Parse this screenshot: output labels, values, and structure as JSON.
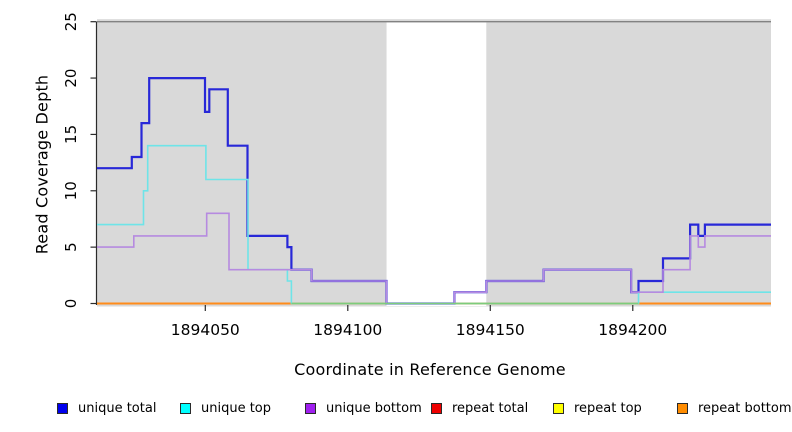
{
  "chart_data": {
    "type": "line",
    "line_style": "step",
    "title": "",
    "xlabel": "Coordinate in Reference Genome",
    "ylabel": "Read Coverage Depth",
    "xlim": [
      1894012,
      1894248.5
    ],
    "ylim": [
      0,
      25
    ],
    "x_ticks": [
      1894050,
      1894100,
      1894150,
      1894200
    ],
    "y_ticks": [
      0,
      5,
      10,
      15,
      20,
      25
    ],
    "grid": false,
    "legend_position": "bottom",
    "plot_bg": "#d9d9d9",
    "page_bg": "#ffffff",
    "box_top_color": "#828282",
    "axis_color": "#2b2b2b",
    "masked_region": {
      "x_start": 1894113.6,
      "x_end": 1894148.6,
      "fill": "#ffffff"
    },
    "series": [
      {
        "key": "repeat-total",
        "name": "repeat total",
        "line_color": "#ee2222",
        "line_width": 1.6,
        "steps": [
          [
            1894012,
            0
          ]
        ]
      },
      {
        "key": "repeat-top",
        "name": "repeat top",
        "line_color": "#f5f500",
        "line_width": 1.6,
        "steps": [
          [
            1894012,
            0
          ]
        ]
      },
      {
        "key": "repeat-bottom",
        "name": "repeat bottom",
        "line_color": "#ff8c1a",
        "line_width": 2,
        "steps": [
          [
            1894012,
            0
          ]
        ]
      },
      {
        "key": "unique-total",
        "name": "unique total",
        "line_color": "#2828d8",
        "line_width": 2.2,
        "steps": [
          [
            1894012,
            12
          ],
          [
            1894024.2,
            13
          ],
          [
            1894027.6,
            16
          ],
          [
            1894030.3,
            20
          ],
          [
            1894049.9,
            17
          ],
          [
            1894051.4,
            19
          ],
          [
            1894057.9,
            14
          ],
          [
            1894064.8,
            6
          ],
          [
            1894078.8,
            5
          ],
          [
            1894080.2,
            3
          ],
          [
            1894087.3,
            2
          ],
          [
            1894113.6,
            0
          ],
          [
            1894137.4,
            1
          ],
          [
            1894148.6,
            2
          ],
          [
            1894168.7,
            3
          ],
          [
            1894199.4,
            1
          ],
          [
            1894202,
            2
          ],
          [
            1894210.6,
            4
          ],
          [
            1894220.1,
            7
          ],
          [
            1894223,
            6
          ],
          [
            1894225.3,
            7
          ]
        ]
      },
      {
        "key": "unique-top",
        "name": "unique top",
        "line_color": "#6ee4e8",
        "line_width": 1.6,
        "steps": [
          [
            1894012,
            7
          ],
          [
            1894028.3,
            10
          ],
          [
            1894029.8,
            14
          ],
          [
            1894050.2,
            11
          ],
          [
            1894065,
            3
          ],
          [
            1894078.8,
            2
          ],
          [
            1894080.2,
            0
          ],
          [
            1894202,
            1
          ]
        ]
      },
      {
        "key": "unique-bottom",
        "name": "unique bottom",
        "line_color": "#b68ae0",
        "line_width": 1.6,
        "steps": [
          [
            1894012,
            5
          ],
          [
            1894024.9,
            6
          ],
          [
            1894050.5,
            8
          ],
          [
            1894058.3,
            3
          ],
          [
            1894087.3,
            2
          ],
          [
            1894113.6,
            0
          ],
          [
            1894137.4,
            1
          ],
          [
            1894148.6,
            2
          ],
          [
            1894168.7,
            3
          ],
          [
            1894199.4,
            1
          ],
          [
            1894210.6,
            3
          ],
          [
            1894220.1,
            6
          ],
          [
            1894223,
            5
          ],
          [
            1894225.3,
            6
          ]
        ]
      },
      {
        "key": "zero-overlap-blend",
        "name": "zero overlap blend (not in legend)",
        "line_color": "#7ccd7c",
        "line_width": 1.6,
        "steps": [
          [
            1894080.2,
            0
          ]
        ],
        "x_end": 1894202
      }
    ],
    "legend": [
      {
        "label": "unique total",
        "color": "#0000ee"
      },
      {
        "label": "unique top",
        "color": "#00ffff"
      },
      {
        "label": "unique bottom",
        "color": "#a020f0"
      },
      {
        "label": "repeat total",
        "color": "#ee0000"
      },
      {
        "label": "repeat top",
        "color": "#ffff00"
      },
      {
        "label": "repeat bottom",
        "color": "#ff8c00"
      }
    ]
  }
}
